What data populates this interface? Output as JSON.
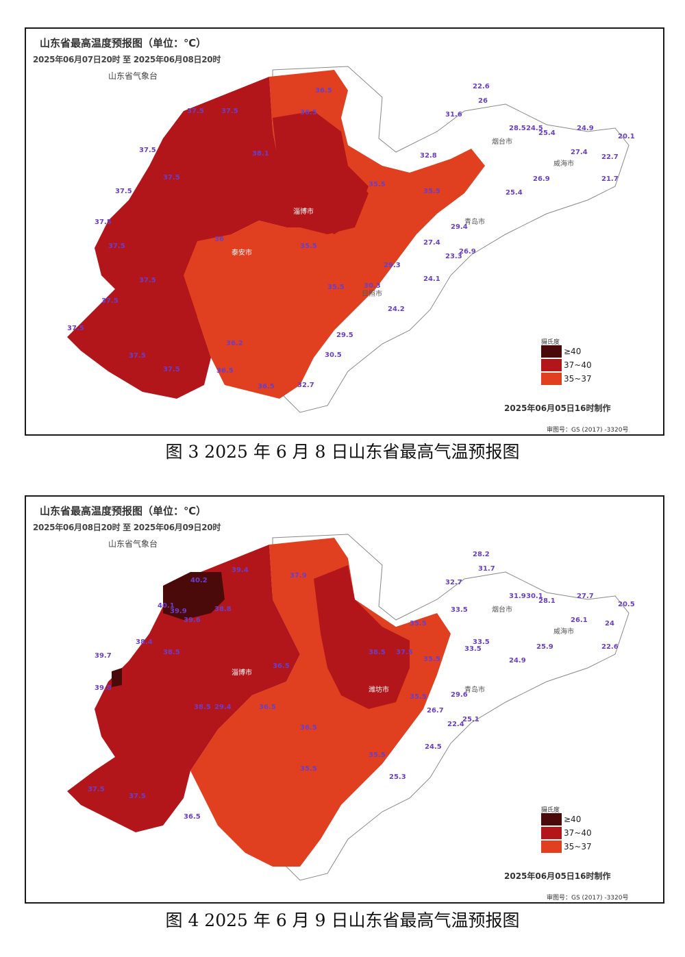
{
  "maps": [
    {
      "title": "山东省最高温度预报图（单位：℃）",
      "period": "2025年06月07日20时  至  2025年06月08日20时",
      "agency": "山东省气象台",
      "made_time": "2025年06月05日16时制作",
      "review_no": "审图号：GS (2017) -3320号",
      "legend": {
        "title": "摄氏度",
        "items": [
          {
            "label": "≥40",
            "color": "#4a0a0a"
          },
          {
            "label": "37~40",
            "color": "#b3161a"
          },
          {
            "label": "35~37",
            "color": "#e0401f"
          }
        ]
      },
      "values": [
        "22.6",
        "26",
        "31.6",
        "32.8",
        "28.5",
        "24.5",
        "25.4",
        "24.9",
        "20.1",
        "27.4",
        "22.7",
        "21.7",
        "26.9",
        "25.4",
        "29.4",
        "27.4",
        "26.9",
        "23.3",
        "24.1",
        "29.3",
        "30.3",
        "24.2",
        "29.5",
        "30.5",
        "32.7",
        "36.5",
        "36.2",
        "36.5",
        "36.5",
        "35.5",
        "35.5",
        "35.5",
        "35.5",
        "37.5",
        "37.5",
        "37.5",
        "37.5",
        "37.5",
        "37.5",
        "37.5",
        "37.5",
        "37.5",
        "37.5",
        "37.5",
        "37.5",
        "38.1",
        "36",
        "36.5"
      ],
      "caption": "图 3   2025 年 6 月 8 日山东省最高气温预报图"
    },
    {
      "title": "山东省最高温度预报图（单位：℃）",
      "period": "2025年06月08日20时  至  2025年06月09日20时",
      "agency": "山东省气象台",
      "made_time": "2025年06月05日16时制作",
      "review_no": "审图号：GS (2017) -3320号",
      "legend": {
        "title": "摄氏度",
        "items": [
          {
            "label": "≥40",
            "color": "#4a0a0a"
          },
          {
            "label": "37~40",
            "color": "#b3161a"
          },
          {
            "label": "35~37",
            "color": "#e0401f"
          }
        ]
      },
      "values": [
        "28.2",
        "31.7",
        "32.7",
        "31.9",
        "30.1",
        "28.1",
        "27.7",
        "20.5",
        "26.1",
        "24",
        "22.6",
        "33.5",
        "33.5",
        "33.5",
        "25.9",
        "24.9",
        "29.6",
        "26.7",
        "25.1",
        "22.4",
        "24.5",
        "25.3",
        "35.5",
        "35.5",
        "35.5",
        "35.5",
        "35.5",
        "36.5",
        "36.5",
        "36.5",
        "37.5",
        "37.5",
        "37.5",
        "38.5",
        "38.5",
        "38.5",
        "38.4",
        "38.8",
        "39.9",
        "39.6",
        "39.4",
        "40.1",
        "40.2",
        "39.7",
        "39.8",
        "29.4",
        "36.5",
        "37.9"
      ],
      "caption": "图 4   2025 年 6 月 9 日山东省最高气温预报图"
    }
  ]
}
